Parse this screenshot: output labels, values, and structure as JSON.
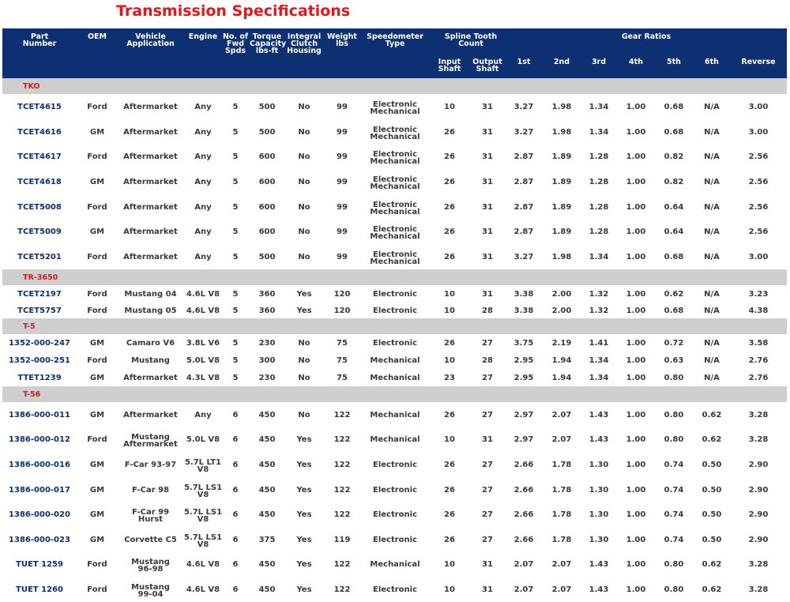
{
  "title": "Transmission Specifications",
  "header": {
    "part": "Part\nNumber",
    "oem": "OEM",
    "vehicle": "Vehicle\nApplication",
    "engine": "Engine",
    "spds": "No. of\nFwd\nSpds",
    "torque": "Torque\nCapacity\nlbs-ft",
    "clutch": "Integral\nClutch\nHousing",
    "weight": "Weight\nlbs",
    "speedo": "Speedometer\nType",
    "spline": "Spline Tooth\nCount",
    "input": "Input\nShaft",
    "output": "Output\nShaft",
    "gear_ratios": "Gear Ratios",
    "g1": "1st",
    "g2": "2nd",
    "g3": "3rd",
    "g4": "4th",
    "g5": "5th",
    "g6": "6th",
    "rev": "Reverse"
  },
  "sections": [
    {
      "name": "TKO",
      "rows": [
        [
          "TCET4615",
          "Ford",
          "Aftermarket",
          "Any",
          "5",
          "500",
          "No",
          "99",
          "Electronic\nMechanical",
          "10",
          "31",
          "3.27",
          "1.98",
          "1.34",
          "1.00",
          "0.68",
          "N/A",
          "3.00"
        ],
        [
          "TCET4616",
          "GM",
          "Aftermarket",
          "Any",
          "5",
          "500",
          "No",
          "99",
          "Electronic\nMechanical",
          "26",
          "31",
          "3.27",
          "1.98",
          "1.34",
          "1.00",
          "0.68",
          "N/A",
          "3.00"
        ],
        [
          "TCET4617",
          "Ford",
          "Aftermarket",
          "Any",
          "5",
          "600",
          "No",
          "99",
          "Electronic\nMechanical",
          "26",
          "31",
          "2.87",
          "1.89",
          "1.28",
          "1.00",
          "0.82",
          "N/A",
          "2.56"
        ],
        [
          "TCET4618",
          "GM",
          "Aftermarket",
          "Any",
          "5",
          "600",
          "No",
          "99",
          "Electronic\nMechanical",
          "26",
          "31",
          "2.87",
          "1.89",
          "1.28",
          "1.00",
          "0.82",
          "N/A",
          "2.56"
        ],
        [
          "TCET5008",
          "Ford",
          "Aftermarket",
          "Any",
          "5",
          "600",
          "No",
          "99",
          "Electronic\nMechanical",
          "26",
          "31",
          "2.87",
          "1.89",
          "1.28",
          "1.00",
          "0.64",
          "N/A",
          "2.56"
        ],
        [
          "TCET5009",
          "GM",
          "Aftermarket",
          "Any",
          "5",
          "600",
          "No",
          "99",
          "Electronic\nMechanical",
          "26",
          "31",
          "2.87",
          "1.89",
          "1.28",
          "1.00",
          "0.64",
          "N/A",
          "2.56"
        ],
        [
          "TCET5201",
          "Ford",
          "Aftermarket",
          "Any",
          "5",
          "500",
          "No",
          "99",
          "Electronic\nMechanical",
          "26",
          "31",
          "3.27",
          "1.98",
          "1.34",
          "1.00",
          "0.68",
          "N/A",
          "3.00"
        ]
      ]
    },
    {
      "name": "TR-3650",
      "rows": [
        [
          "TCET2197",
          "Ford",
          "Mustang 04",
          "4.6L V8",
          "5",
          "360",
          "Yes",
          "120",
          "Electronic",
          "10",
          "31",
          "3.38",
          "2.00",
          "1.32",
          "1.00",
          "0.62",
          "N/A",
          "3.23"
        ],
        [
          "TCET5757",
          "Ford",
          "Mustang 05",
          "4.6L V8",
          "5",
          "360",
          "Yes",
          "120",
          "Electronic",
          "10",
          "28",
          "3.38",
          "2.00",
          "1.32",
          "1.00",
          "0.68",
          "N/A",
          "4.38"
        ]
      ]
    },
    {
      "name": "T-5",
      "rows": [
        [
          "1352-000-247",
          "GM",
          "Camaro V6",
          "3.8L V6",
          "5",
          "230",
          "No",
          "75",
          "Electronic",
          "26",
          "27",
          "3.75",
          "2.19",
          "1.41",
          "1.00",
          "0.72",
          "N/A",
          "3.58"
        ],
        [
          "1352-000-251",
          "Ford",
          "Mustang",
          "5.0L V8",
          "5",
          "300",
          "No",
          "75",
          "Mechanical",
          "10",
          "28",
          "2.95",
          "1.94",
          "1.34",
          "1.00",
          "0.63",
          "N/A",
          "2.76"
        ],
        [
          "TTET1239",
          "GM",
          "Aftermarket",
          "4.3L V8",
          "5",
          "230",
          "No",
          "75",
          "Mechanical",
          "23",
          "27",
          "2.95",
          "1.94",
          "1.34",
          "1.00",
          "0.80",
          "N/A",
          "2.76"
        ]
      ]
    },
    {
      "name": "T-56",
      "rows": [
        [
          "1386-000-011",
          "GM",
          "Aftermarket",
          "Any",
          "6",
          "450",
          "No",
          "122",
          "Mechanical",
          "26",
          "27",
          "2.97",
          "2.07",
          "1.43",
          "1.00",
          "0.80",
          "0.62",
          "3.28"
        ],
        [
          "1386-000-012",
          "Ford",
          "Mustang\nAftermarket",
          "5.0L V8",
          "6",
          "450",
          "Yes",
          "122",
          "Mechanical",
          "10",
          "31",
          "2.97",
          "2.07",
          "1.43",
          "1.00",
          "0.80",
          "0.62",
          "3.28"
        ],
        [
          "1386-000-016",
          "GM",
          "F-Car 93-97",
          "5.7L LT1\nV8",
          "6",
          "450",
          "Yes",
          "122",
          "Electronic",
          "26",
          "27",
          "2.66",
          "1.78",
          "1.30",
          "1.00",
          "0.74",
          "0.50",
          "2.90"
        ],
        [
          "1386-000-017",
          "GM",
          "F-Car 98",
          "5.7L LS1\nV8",
          "6",
          "450",
          "Yes",
          "122",
          "Electronic",
          "26",
          "27",
          "2.66",
          "1.78",
          "1.30",
          "1.00",
          "0.74",
          "0.50",
          "2.90"
        ],
        [
          "1386-000-020",
          "GM",
          "F-Car 99\nHurst",
          "5.7L LS1\nV8",
          "6",
          "450",
          "Yes",
          "122",
          "Electronic",
          "26",
          "27",
          "2.66",
          "1.78",
          "1.30",
          "1.00",
          "0.74",
          "0.50",
          "2.90"
        ],
        [
          "1386-000-023",
          "GM",
          "Corvette C5",
          "5.7L LS1\nV8",
          "6",
          "375",
          "Yes",
          "119",
          "Electronic",
          "26",
          "27",
          "2.66",
          "1.78",
          "1.30",
          "1.00",
          "0.74",
          "0.50",
          "2.90"
        ],
        [
          "TUET 1259",
          "Ford",
          "Mustang\n96-98",
          "4.6L V8",
          "6",
          "450",
          "Yes",
          "122",
          "Mechanical",
          "10",
          "31",
          "2.07",
          "2.07",
          "1.43",
          "1.00",
          "0.80",
          "0.62",
          "3.28"
        ],
        [
          "TUET 1260",
          "Ford",
          "Mustang\n99-04",
          "4.6L V8",
          "6",
          "450",
          "Yes",
          "122",
          "Electronic",
          "10",
          "31",
          "2.07",
          "2.07",
          "1.43",
          "1.00",
          "0.80",
          "0.62",
          "3.28"
        ]
      ]
    }
  ]
}
